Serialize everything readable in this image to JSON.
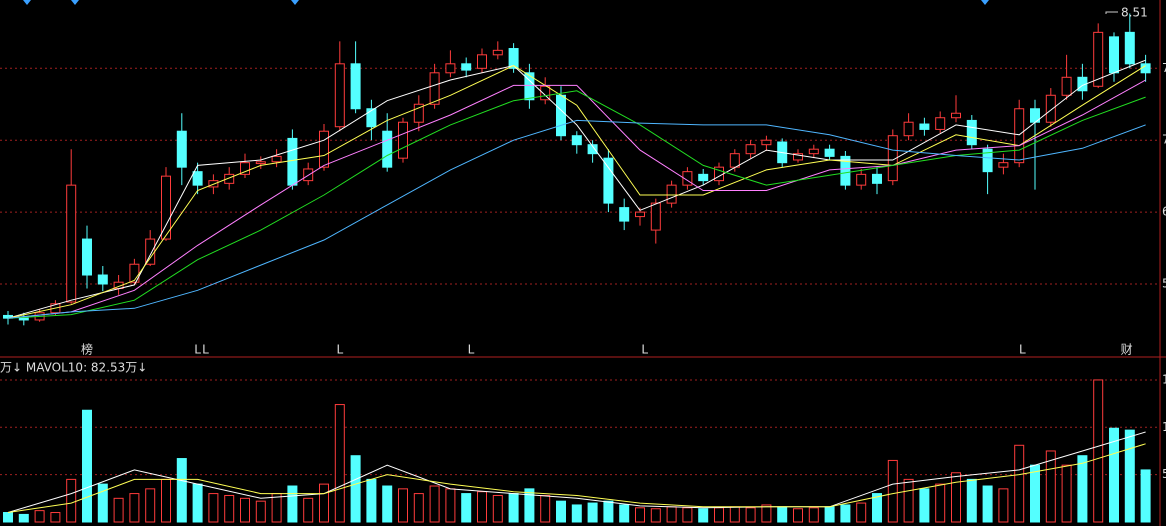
{
  "chart_data": [
    {
      "type": "candlestick",
      "up_color": "#ff3c3c",
      "down_color": "#54ffff",
      "grid": true,
      "grid_color": "#a02020",
      "ylim": [
        4.71,
        8.66
      ],
      "yticks": [
        7.9,
        7.1,
        6.3,
        5.5
      ],
      "open": [
        5.15,
        5.12,
        5.1,
        5.18,
        5.3,
        6.0,
        5.6,
        5.45,
        5.52,
        5.72,
        6.0,
        7.2,
        6.75,
        6.58,
        6.62,
        6.72,
        6.84,
        6.86,
        7.12,
        6.65,
        6.8,
        7.25,
        7.95,
        7.45,
        7.2,
        6.9,
        7.3,
        7.5,
        7.85,
        7.95,
        7.9,
        8.05,
        8.12,
        7.85,
        7.55,
        7.6,
        7.15,
        7.05,
        6.9,
        6.35,
        6.25,
        6.1,
        6.4,
        6.6,
        6.72,
        6.65,
        6.8,
        6.95,
        7.05,
        7.08,
        6.88,
        6.95,
        7.0,
        6.92,
        6.6,
        6.72,
        6.65,
        7.15,
        7.28,
        7.22,
        7.35,
        7.32,
        7.0,
        6.8,
        6.85,
        7.45,
        7.3,
        7.6,
        7.8,
        7.7,
        8.25,
        8.3,
        7.95
      ],
      "high": [
        5.2,
        5.18,
        5.22,
        5.32,
        7.0,
        6.15,
        5.7,
        5.6,
        5.78,
        6.1,
        6.8,
        7.4,
        6.85,
        6.72,
        6.8,
        6.95,
        6.92,
        7.0,
        7.22,
        6.85,
        7.28,
        8.2,
        8.2,
        7.55,
        7.4,
        7.35,
        7.6,
        7.95,
        8.1,
        8.02,
        8.12,
        8.2,
        8.18,
        7.95,
        7.8,
        7.7,
        7.2,
        7.1,
        7.0,
        6.45,
        6.35,
        6.45,
        6.65,
        6.8,
        6.78,
        6.85,
        7.0,
        7.1,
        7.15,
        7.12,
        7.0,
        7.05,
        7.05,
        6.98,
        6.78,
        6.8,
        7.22,
        7.4,
        7.35,
        7.42,
        7.6,
        7.38,
        7.05,
        6.95,
        7.55,
        7.55,
        7.68,
        8.05,
        7.95,
        8.4,
        8.3,
        8.51,
        8.05
      ],
      "low": [
        5.05,
        5.04,
        5.08,
        5.15,
        5.28,
        5.45,
        5.42,
        5.38,
        5.5,
        5.7,
        5.98,
        6.6,
        6.5,
        6.5,
        6.55,
        6.68,
        6.78,
        6.8,
        6.55,
        6.6,
        6.76,
        7.2,
        7.4,
        7.1,
        6.75,
        6.85,
        7.2,
        7.45,
        7.8,
        7.8,
        7.85,
        8.0,
        7.85,
        7.45,
        7.5,
        7.1,
        6.95,
        6.85,
        6.3,
        6.1,
        6.15,
        5.95,
        6.35,
        6.55,
        6.6,
        6.6,
        6.75,
        6.9,
        6.98,
        6.8,
        6.85,
        6.9,
        6.88,
        6.55,
        6.55,
        6.5,
        6.6,
        7.1,
        7.15,
        7.18,
        7.3,
        7.0,
        6.5,
        6.72,
        6.8,
        6.55,
        7.25,
        7.55,
        7.55,
        7.68,
        7.75,
        7.9,
        7.75
      ],
      "close": [
        5.12,
        5.1,
        5.18,
        5.28,
        6.6,
        5.6,
        5.5,
        5.52,
        5.72,
        6.0,
        6.7,
        6.8,
        6.6,
        6.65,
        6.72,
        6.85,
        6.86,
        6.92,
        6.6,
        6.78,
        7.2,
        7.95,
        7.45,
        7.25,
        6.8,
        7.3,
        7.5,
        7.85,
        7.95,
        7.88,
        8.05,
        8.1,
        7.9,
        7.55,
        7.7,
        7.15,
        7.05,
        6.95,
        6.4,
        6.2,
        6.3,
        6.4,
        6.6,
        6.75,
        6.65,
        6.8,
        6.95,
        7.05,
        7.1,
        6.85,
        6.95,
        7.0,
        6.92,
        6.6,
        6.72,
        6.62,
        7.15,
        7.3,
        7.22,
        7.35,
        7.4,
        7.05,
        6.75,
        6.85,
        7.45,
        7.3,
        7.6,
        7.8,
        7.65,
        8.3,
        7.85,
        7.95,
        7.85
      ],
      "max_label": 8.51,
      "lines": [
        {
          "color": "#ffffff",
          "x": [
            0,
            4,
            8,
            12,
            16,
            20,
            24,
            28,
            32,
            36,
            40,
            44,
            48,
            52,
            56,
            60,
            64,
            68,
            72
          ],
          "values": [
            5.12,
            5.32,
            5.49,
            6.82,
            6.88,
            7.1,
            7.54,
            7.77,
            7.93,
            7.27,
            6.32,
            6.6,
            6.99,
            6.88,
            6.88,
            7.27,
            7.16,
            7.71,
            7.99
          ]
        },
        {
          "color": "#ffff55",
          "x": [
            0,
            4,
            8,
            12,
            16,
            20,
            24,
            28,
            32,
            36,
            40,
            44,
            48,
            52,
            56,
            60,
            64,
            68,
            72
          ],
          "values": [
            5.12,
            5.27,
            5.54,
            6.54,
            6.82,
            6.93,
            7.32,
            7.6,
            7.93,
            7.49,
            6.49,
            6.49,
            6.77,
            6.88,
            6.82,
            7.16,
            7.04,
            7.49,
            7.93
          ]
        },
        {
          "color": "#ff80ff",
          "x": [
            0,
            4,
            8,
            12,
            16,
            20,
            24,
            28,
            32,
            36,
            40,
            44,
            48,
            52,
            56,
            60,
            64,
            68,
            72
          ],
          "values": [
            5.12,
            5.19,
            5.43,
            5.93,
            6.38,
            6.82,
            7.1,
            7.38,
            7.71,
            7.71,
            6.99,
            6.54,
            6.54,
            6.77,
            6.82,
            6.99,
            7.04,
            7.38,
            7.77
          ]
        },
        {
          "color": "#22dd22",
          "x": [
            0,
            4,
            8,
            12,
            16,
            20,
            24,
            28,
            32,
            36,
            40,
            44,
            48,
            52,
            56,
            60,
            64,
            68,
            72
          ],
          "values": [
            5.12,
            5.16,
            5.32,
            5.77,
            6.1,
            6.49,
            6.93,
            7.27,
            7.54,
            7.65,
            7.27,
            6.82,
            6.6,
            6.71,
            6.82,
            6.93,
            6.99,
            7.32,
            7.58
          ]
        },
        {
          "color": "#4fb6ff",
          "x": [
            0,
            4,
            8,
            12,
            16,
            20,
            24,
            28,
            32,
            36,
            40,
            44,
            48,
            52,
            56,
            60,
            64,
            68,
            72
          ],
          "values": [
            5.12,
            5.19,
            5.23,
            5.43,
            5.71,
            5.99,
            6.38,
            6.77,
            7.1,
            7.32,
            7.29,
            7.27,
            7.27,
            7.16,
            6.99,
            6.93,
            6.88,
            7.01,
            7.27
          ]
        }
      ],
      "flags": [
        {
          "x": 5,
          "label": "榜"
        },
        {
          "x": 12,
          "label": "L"
        },
        {
          "x": 12.5,
          "label": "L"
        },
        {
          "x": 21,
          "label": "L"
        },
        {
          "x": 29.3,
          "label": "L"
        },
        {
          "x": 40.3,
          "label": "L"
        },
        {
          "x": 64.2,
          "label": "L"
        },
        {
          "x": 70.8,
          "label": "财"
        }
      ]
    },
    {
      "type": "volume",
      "label": "万↓ MAVOL10: 82.53万↓",
      "grid": true,
      "ylim": [
        0,
        170
      ],
      "yticks": [
        50,
        100,
        150
      ],
      "values": [
        10,
        8,
        12,
        10,
        45,
        118,
        40,
        25,
        30,
        35,
        45,
        67,
        40,
        30,
        28,
        25,
        22,
        30,
        38,
        25,
        40,
        124,
        70,
        45,
        38,
        35,
        30,
        38,
        35,
        30,
        32,
        28,
        30,
        35,
        28,
        22,
        18,
        20,
        22,
        18,
        15,
        14,
        16,
        15,
        14,
        15,
        16,
        15,
        18,
        16,
        14,
        15,
        16,
        18,
        20,
        30,
        65,
        45,
        35,
        40,
        52,
        45,
        38,
        35,
        81,
        60,
        75,
        60,
        70,
        150,
        99,
        97,
        55
      ],
      "lines": [
        {
          "color": "#ffffff",
          "x": [
            0,
            4,
            8,
            12,
            16,
            20,
            24,
            28,
            32,
            36,
            40,
            44,
            48,
            52,
            56,
            60,
            64,
            68,
            72
          ],
          "values": [
            10,
            30,
            55,
            40,
            25,
            30,
            60,
            35,
            30,
            25,
            17,
            15,
            16,
            16,
            40,
            48,
            55,
            75,
            95
          ]
        },
        {
          "color": "#ffff55",
          "x": [
            0,
            4,
            8,
            12,
            16,
            20,
            24,
            28,
            32,
            36,
            40,
            44,
            48,
            52,
            56,
            60,
            64,
            68,
            72
          ],
          "values": [
            10,
            20,
            45,
            45,
            30,
            30,
            50,
            40,
            32,
            28,
            20,
            16,
            16,
            16,
            30,
            42,
            50,
            62,
            82.53
          ]
        }
      ]
    }
  ]
}
